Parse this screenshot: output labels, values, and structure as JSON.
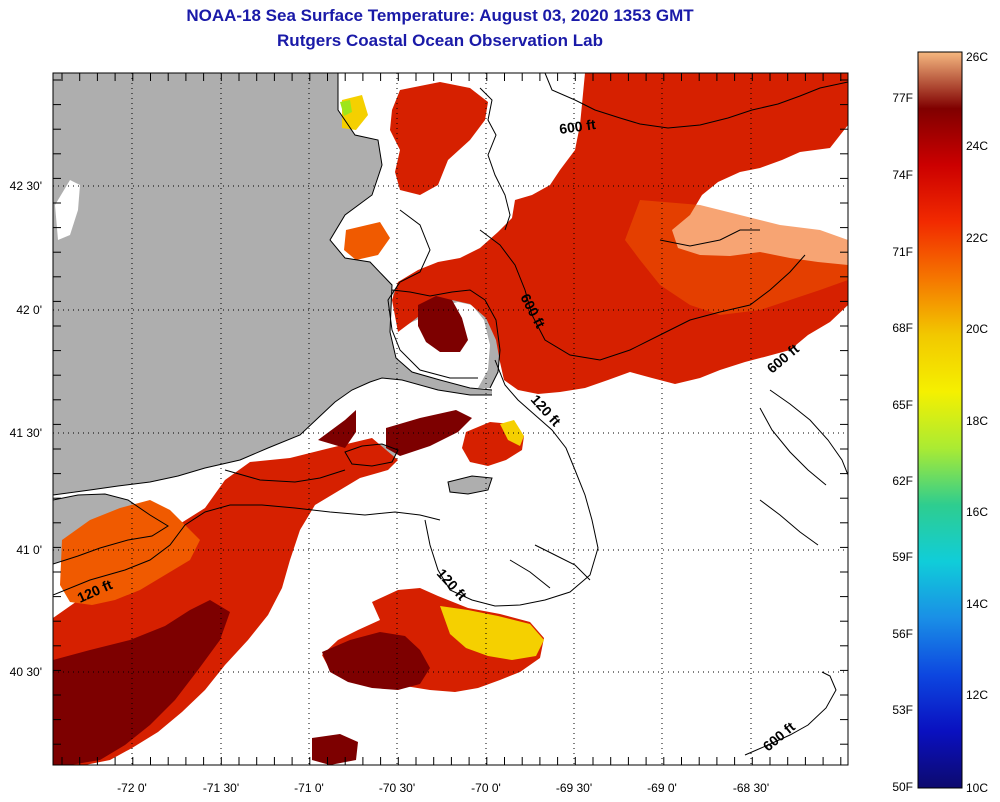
{
  "title": {
    "line1": "NOAA-18 Sea Surface Temperature:  August 03, 2020 1353 GMT",
    "line2": "Rutgers Coastal Ocean Observation Lab"
  },
  "colors": {
    "land": "#aeaeae",
    "water_clear": "#ffffff",
    "coastline": "#000000",
    "gridline": "#000000",
    "title": "#1a1aa8",
    "sst_dark_red": "#7d0000",
    "sst_red": "#d62000",
    "sst_orange": "#f05a00",
    "sst_yellow": "#f5d000",
    "sst_green": "#9ee51a"
  },
  "map": {
    "lon_ticks": [
      "-72 0'",
      "-71 30'",
      "-71 0'",
      "-70 30'",
      "-70 0'",
      "-69 30'",
      "-69 0'",
      "-68 30'"
    ],
    "lat_ticks": [
      "42 30'",
      "42 0'",
      "41 30'",
      "41 0'",
      "40 30'"
    ],
    "contour_labels": [
      {
        "id": "600-ft-ne",
        "text": "600 ft"
      },
      {
        "id": "600-ft-central",
        "text": "600 ft"
      },
      {
        "id": "600-ft-east",
        "text": "600 ft"
      },
      {
        "id": "120-ft-cape",
        "text": "120 ft"
      },
      {
        "id": "120-ft-south",
        "text": "120 ft"
      },
      {
        "id": "120-ft-west",
        "text": "120 ft"
      },
      {
        "id": "600-ft-se",
        "text": "600 ft"
      }
    ]
  },
  "colorbar": {
    "f_labels": [
      "77F",
      "74F",
      "71F",
      "68F",
      "65F",
      "62F",
      "59F",
      "56F",
      "53F",
      "50F"
    ],
    "c_labels": [
      "26C",
      "24C",
      "22C",
      "20C",
      "18C",
      "16C",
      "14C",
      "12C",
      "10C"
    ],
    "gradient": [
      "#f5b880",
      "#800000",
      "#cc0000",
      "#f22a00",
      "#f57600",
      "#f2c800",
      "#f5f000",
      "#aaeb33",
      "#2ecd8f",
      "#10cdd9",
      "#1a8fe6",
      "#0d47e0",
      "#0a10c0",
      "#0d0a6e"
    ]
  }
}
